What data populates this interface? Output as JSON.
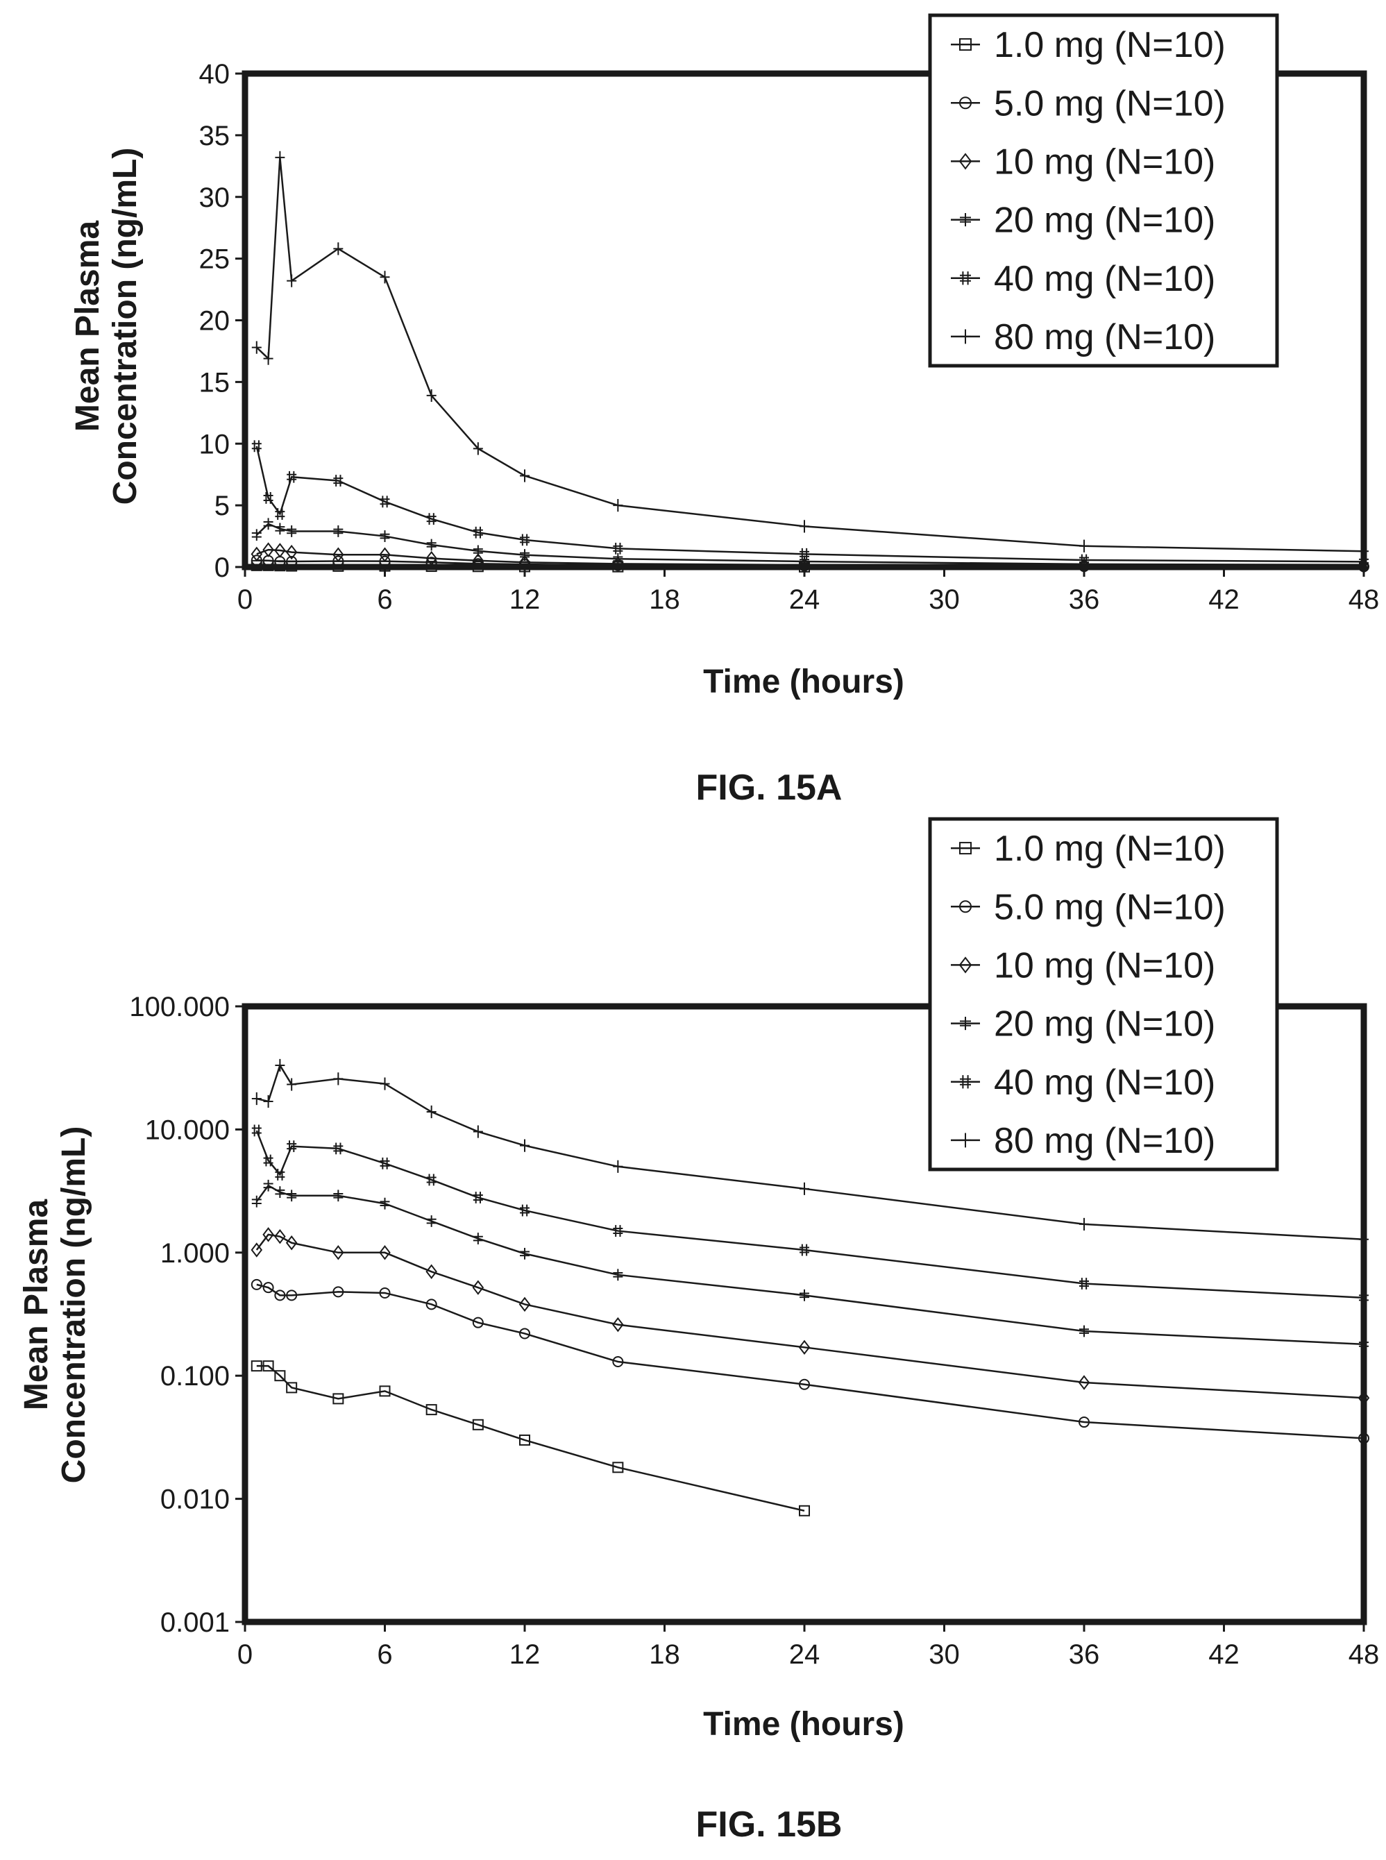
{
  "chart_data": [
    {
      "type": "line",
      "figure_label": "FIG. 15A",
      "xlabel": "Time (hours)",
      "ylabel_line1": "Mean Plasma",
      "ylabel_line2": "Concentration (ng/mL)",
      "xlim": [
        0,
        48
      ],
      "ylim": [
        0,
        40
      ],
      "yscale": "linear",
      "xticks": [
        "0",
        "6",
        "12",
        "18",
        "24",
        "30",
        "36",
        "42",
        "48"
      ],
      "yticks": [
        "0",
        "5",
        "10",
        "15",
        "20",
        "25",
        "30",
        "35",
        "40"
      ],
      "legend_position": "top-right",
      "series": [
        {
          "name": "1.0 mg (N=10)",
          "marker": "square",
          "x": [
            0.5,
            1,
            1.5,
            2,
            4,
            6,
            8,
            10,
            12,
            16,
            24
          ],
          "y": [
            0.12,
            0.12,
            0.1,
            0.08,
            0.065,
            0.075,
            0.053,
            0.04,
            0.03,
            0.018,
            0.008
          ]
        },
        {
          "name": "5.0 mg (N=10)",
          "marker": "circle",
          "x": [
            0.5,
            1,
            1.5,
            2,
            4,
            6,
            8,
            10,
            12,
            16,
            24,
            36,
            48
          ],
          "y": [
            0.55,
            0.52,
            0.45,
            0.45,
            0.48,
            0.47,
            0.38,
            0.27,
            0.22,
            0.13,
            0.085,
            0.042,
            0.031
          ]
        },
        {
          "name": "10 mg (N=10)",
          "marker": "diamond",
          "x": [
            0.5,
            1,
            1.5,
            2,
            4,
            6,
            8,
            10,
            12,
            16,
            24,
            36,
            48
          ],
          "y": [
            1.05,
            1.4,
            1.35,
            1.2,
            1.0,
            1.0,
            0.7,
            0.52,
            0.38,
            0.26,
            0.17,
            0.088,
            0.066
          ]
        },
        {
          "name": "20 mg (N=10)",
          "marker": "bar",
          "x": [
            0.5,
            1,
            1.5,
            2,
            4,
            6,
            8,
            10,
            12,
            16,
            24,
            36,
            48
          ],
          "y": [
            2.6,
            3.5,
            3.1,
            2.9,
            2.9,
            2.5,
            1.8,
            1.3,
            0.98,
            0.66,
            0.45,
            0.23,
            0.18
          ]
        },
        {
          "name": "40 mg (N=10)",
          "marker": "hash",
          "x": [
            0.5,
            1,
            1.5,
            2,
            4,
            6,
            8,
            10,
            12,
            16,
            24,
            36,
            48
          ],
          "y": [
            9.8,
            5.6,
            4.3,
            7.3,
            7.0,
            5.3,
            3.9,
            2.8,
            2.2,
            1.5,
            1.05,
            0.56,
            0.43
          ]
        },
        {
          "name": "80 mg (N=10)",
          "marker": "plus",
          "x": [
            0.5,
            1,
            1.5,
            2,
            4,
            6,
            8,
            10,
            12,
            16,
            24,
            36,
            48
          ],
          "y": [
            17.8,
            16.9,
            33.2,
            23.2,
            25.8,
            23.5,
            13.9,
            9.6,
            7.4,
            5.0,
            3.3,
            1.7,
            1.28
          ]
        }
      ]
    },
    {
      "type": "line",
      "figure_label": "FIG. 15B",
      "xlabel": "Time (hours)",
      "ylabel_line1": "Mean Plasma",
      "ylabel_line2": "Concentration (ng/mL)",
      "xlim": [
        0,
        48
      ],
      "ylim": [
        0.001,
        100
      ],
      "yscale": "log",
      "xticks": [
        "0",
        "6",
        "12",
        "18",
        "24",
        "30",
        "36",
        "42",
        "48"
      ],
      "yticks": [
        "0.001",
        "0.010",
        "0.100",
        "1.000",
        "10.000",
        "100.000"
      ],
      "legend_position": "top-right",
      "series": [
        {
          "name": "1.0 mg (N=10)",
          "marker": "square",
          "x": [
            0.5,
            1,
            1.5,
            2,
            4,
            6,
            8,
            10,
            12,
            16,
            24
          ],
          "y": [
            0.12,
            0.12,
            0.1,
            0.08,
            0.065,
            0.075,
            0.053,
            0.04,
            0.03,
            0.018,
            0.008
          ]
        },
        {
          "name": "5.0 mg (N=10)",
          "marker": "circle",
          "x": [
            0.5,
            1,
            1.5,
            2,
            4,
            6,
            8,
            10,
            12,
            16,
            24,
            36,
            48
          ],
          "y": [
            0.55,
            0.52,
            0.45,
            0.45,
            0.48,
            0.47,
            0.38,
            0.27,
            0.22,
            0.13,
            0.085,
            0.042,
            0.031
          ]
        },
        {
          "name": "10 mg (N=10)",
          "marker": "diamond",
          "x": [
            0.5,
            1,
            1.5,
            2,
            4,
            6,
            8,
            10,
            12,
            16,
            24,
            36,
            48
          ],
          "y": [
            1.05,
            1.4,
            1.35,
            1.2,
            1.0,
            1.0,
            0.7,
            0.52,
            0.38,
            0.26,
            0.17,
            0.088,
            0.066
          ]
        },
        {
          "name": "20 mg (N=10)",
          "marker": "bar",
          "x": [
            0.5,
            1,
            1.5,
            2,
            4,
            6,
            8,
            10,
            12,
            16,
            24,
            36,
            48
          ],
          "y": [
            2.6,
            3.5,
            3.1,
            2.9,
            2.9,
            2.5,
            1.8,
            1.3,
            0.98,
            0.66,
            0.45,
            0.23,
            0.18
          ]
        },
        {
          "name": "40 mg (N=10)",
          "marker": "hash",
          "x": [
            0.5,
            1,
            1.5,
            2,
            4,
            6,
            8,
            10,
            12,
            16,
            24,
            36,
            48
          ],
          "y": [
            9.8,
            5.6,
            4.3,
            7.3,
            7.0,
            5.3,
            3.9,
            2.8,
            2.2,
            1.5,
            1.05,
            0.56,
            0.43
          ]
        },
        {
          "name": "80 mg (N=10)",
          "marker": "plus",
          "x": [
            0.5,
            1,
            1.5,
            2,
            4,
            6,
            8,
            10,
            12,
            16,
            24,
            36,
            48
          ],
          "y": [
            17.8,
            16.9,
            33.2,
            23.2,
            25.8,
            23.5,
            13.9,
            9.6,
            7.4,
            5.0,
            3.3,
            1.7,
            1.28
          ]
        }
      ]
    }
  ]
}
